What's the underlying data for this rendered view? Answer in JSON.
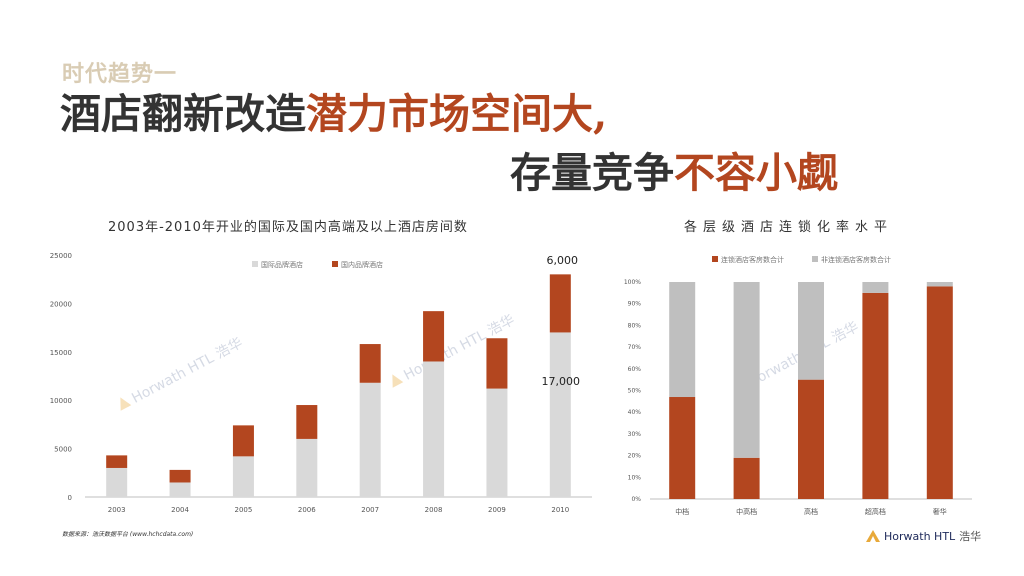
{
  "slide": {
    "kicker": "时代趋势一",
    "headline_line1_dark": "酒店翻新改造",
    "headline_line1_accent": "潜力市场空间大,",
    "headline_line2_dark": "存量竞争",
    "headline_line2_accent": "不容小觑",
    "source": "数据来源：浩沃数据平台 (www.hchcdata.com)",
    "brand_name": "Horwath HTL",
    "brand_cn": "浩华",
    "watermark": "Horwath HTL 浩华"
  },
  "colors": {
    "accent": "#b3461f",
    "grey_bar": "#d9d9d9",
    "grey_bar2": "#bfbfbf",
    "kicker": "#d9ccb4"
  },
  "chart_data": [
    {
      "type": "bar",
      "stacked": true,
      "title": "2003年-2010年开业的国际及国内高端及以上酒店房间数",
      "categories": [
        "2003",
        "2004",
        "2005",
        "2006",
        "2007",
        "2008",
        "2009",
        "2010"
      ],
      "series": [
        {
          "name": "国际品牌酒店",
          "values": [
            3000,
            1500,
            4200,
            6000,
            11800,
            14000,
            11200,
            17000
          ]
        },
        {
          "name": "国内品牌酒店",
          "values": [
            1300,
            1300,
            3200,
            3500,
            4000,
            5200,
            5200,
            6000
          ]
        }
      ],
      "ylim": [
        0,
        25000
      ],
      "yticks": [
        "0",
        "5000",
        "10000",
        "15000",
        "20000",
        "25000"
      ],
      "annotations": [
        "6,000",
        "17,000"
      ],
      "legend": "top-center",
      "grid": false
    },
    {
      "type": "bar",
      "stacked": true,
      "percent": true,
      "title": "各层级酒店连锁化率水平",
      "categories": [
        "中档",
        "中高档",
        "高档",
        "超高档",
        "奢华"
      ],
      "series": [
        {
          "name": "连锁酒店客房数合计",
          "values": [
            0.47,
            0.19,
            0.55,
            0.95,
            0.98
          ]
        },
        {
          "name": "非连锁酒店客房数合计",
          "values": [
            0.53,
            0.81,
            0.45,
            0.05,
            0.02
          ]
        }
      ],
      "ylim": [
        0,
        1
      ],
      "yticks": [
        "0%",
        "10%",
        "20%",
        "30%",
        "40%",
        "50%",
        "60%",
        "70%",
        "80%",
        "90%",
        "100%"
      ],
      "legend": "top-center",
      "grid": false
    }
  ]
}
